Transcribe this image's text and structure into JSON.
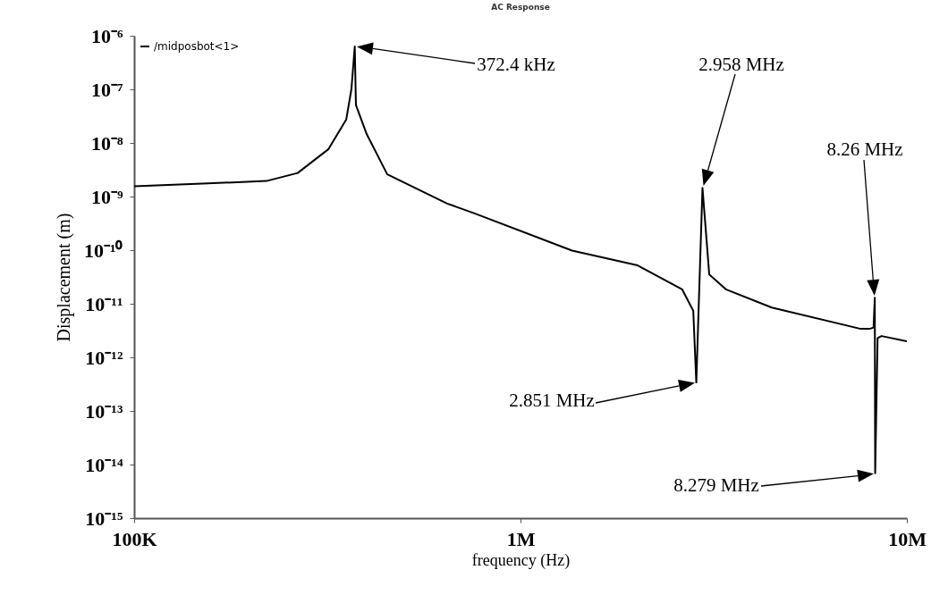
{
  "chart_data": {
    "type": "line",
    "title": "AC Response",
    "xlabel": "frequency (Hz)",
    "ylabel": "Displacement (m)",
    "log": "xy",
    "grid": false,
    "legend": "top left",
    "marker": "none",
    "line_style": "solid",
    "xlim": [
      100000,
      10000000
    ],
    "ylim": [
      1e-15,
      1e-06
    ],
    "xticks": [
      {
        "value": 100000,
        "label": "100K"
      },
      {
        "value": 1000000,
        "label": "1M"
      },
      {
        "value": 10000000,
        "label": "10M"
      }
    ],
    "yticks": [
      {
        "value": 1e-15,
        "label": "10⁻¹⁵"
      },
      {
        "value": 1e-14,
        "label": "10⁻¹⁴"
      },
      {
        "value": 1e-13,
        "label": "10⁻¹³"
      },
      {
        "value": 1e-12,
        "label": "10⁻¹²"
      },
      {
        "value": 1e-11,
        "label": "10⁻¹¹"
      },
      {
        "value": 1e-10,
        "label": "10⁻¹⁰"
      },
      {
        "value": 1e-09,
        "label": "10⁻⁹"
      },
      {
        "value": 1e-08,
        "label": "10⁻⁸"
      },
      {
        "value": 1e-07,
        "label": "10⁻⁷"
      },
      {
        "value": 1e-06,
        "label": "10⁻⁶"
      }
    ],
    "x": [
      100000,
      150000,
      220000,
      265000,
      318000,
      354000,
      365000,
      372400,
      375000,
      400000,
      452000,
      646000,
      758000,
      1360000,
      2010000,
      2620000,
      2800000,
      2851000,
      2958000,
      3080000,
      3400000,
      4470000,
      7600000,
      8000000,
      8200000,
      8260000,
      8279000,
      8400000,
      8600000,
      10000000
    ],
    "series": [
      {
        "name": "/midposbot<1>",
        "color": "#000000",
        "values": [
          1.55e-09,
          1.74e-09,
          1.95e-09,
          2.75e-09,
          7.6e-09,
          2.75e-08,
          1e-07,
          6.3e-07,
          5.1e-08,
          1.45e-08,
          2.6e-09,
          7.4e-10,
          4.9e-10,
          9.8e-11,
          5.2e-11,
          1.86e-11,
          7.4e-12,
          3.4e-13,
          1.45e-09,
          3.5e-11,
          1.86e-11,
          8.5e-12,
          3.4e-12,
          3.4e-12,
          3.6e-12,
          1.3e-11,
          6.9e-15,
          2.3e-12,
          2.5e-12,
          2e-12
        ]
      }
    ],
    "annotations": [
      "372.4 kHz",
      "2.958 MHz",
      "8.26 MHz",
      "2.851 MHz",
      "8.279 MHz"
    ]
  }
}
